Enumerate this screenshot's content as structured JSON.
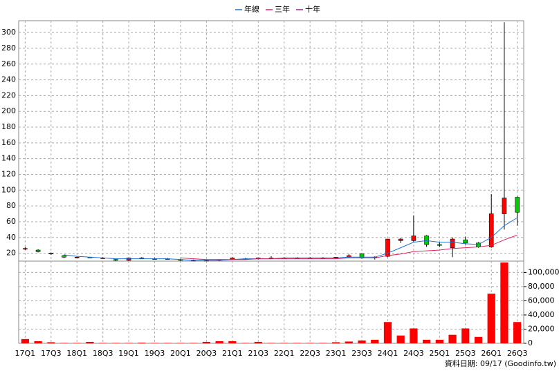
{
  "chart_data": {
    "type": "candlestick",
    "categories": [
      "17Q1",
      null,
      "17Q3",
      null,
      "18Q1",
      null,
      "18Q3",
      null,
      "19Q1",
      null,
      "19Q3",
      null,
      "20Q1",
      null,
      "20Q3",
      null,
      "21Q1",
      null,
      "21Q3",
      null,
      "22Q1",
      null,
      "22Q3",
      null,
      "23Q1",
      null,
      "23Q3",
      null,
      "24Q1",
      null,
      "24Q3",
      null,
      "25Q1",
      null,
      "25Q3",
      null,
      "26Q1",
      null,
      "26Q3"
    ],
    "open": [
      26,
      24,
      20,
      17,
      15,
      15,
      14,
      12,
      11,
      14,
      13,
      13,
      12,
      11,
      11,
      11,
      12,
      13,
      13,
      14,
      14,
      14,
      14,
      14,
      14,
      15,
      19,
      15,
      16,
      36,
      36,
      42,
      31,
      27,
      37,
      33,
      28,
      70,
      91
    ],
    "high": [
      28,
      25,
      21,
      18,
      16,
      15,
      15,
      13,
      14,
      15,
      14,
      14,
      13,
      12,
      12,
      12,
      15,
      14,
      14,
      16,
      15,
      15,
      15,
      15,
      15,
      19,
      20,
      16,
      38,
      39,
      68,
      43,
      34,
      40,
      41,
      34,
      95,
      313,
      92
    ],
    "low": [
      24,
      21,
      18,
      14,
      14,
      14,
      13,
      10,
      10,
      13,
      12,
      12,
      10,
      10,
      10,
      10,
      12,
      12,
      12,
      13,
      13,
      13,
      13,
      13,
      13,
      14,
      13,
      12,
      15,
      33,
      34,
      28,
      28,
      15,
      31,
      27,
      27,
      50,
      55
    ],
    "close": [
      26,
      22,
      19,
      15,
      15,
      14,
      14,
      11,
      14,
      14,
      13,
      13,
      11,
      11,
      11,
      12,
      14,
      13,
      14,
      14,
      14,
      14,
      14,
      14,
      15,
      17,
      14,
      15,
      38,
      38,
      42,
      31,
      30,
      38,
      33,
      28,
      70,
      90,
      72
    ],
    "up_color": "#ff0000",
    "down_color": "#00cc00",
    "series": [
      {
        "name": "年線",
        "color": "#1f6fd6",
        "values": [
          null,
          null,
          null,
          18,
          16,
          15,
          14,
          13,
          13,
          13,
          13,
          13,
          12,
          11,
          11,
          11,
          12,
          13,
          13,
          13,
          14,
          14,
          14,
          14,
          14,
          15,
          15,
          15,
          20,
          27,
          34,
          36,
          34,
          34,
          32,
          31,
          40,
          55,
          65
        ]
      },
      {
        "name": "三年",
        "color": "#e0205a",
        "values": [
          null,
          null,
          null,
          null,
          null,
          null,
          null,
          null,
          null,
          null,
          null,
          null,
          14,
          13,
          12,
          12,
          12,
          12,
          13,
          13,
          13,
          13,
          13,
          13,
          13,
          14,
          14,
          14,
          17,
          19,
          22,
          23,
          24,
          26,
          27,
          28,
          30,
          37,
          43
        ]
      },
      {
        "name": "十年",
        "color": "#a0208f",
        "values": [
          null,
          null,
          null,
          null,
          null,
          null,
          null,
          null,
          null,
          null,
          null,
          null,
          null,
          null,
          null,
          null,
          null,
          null,
          null,
          null,
          null,
          null,
          null,
          null,
          null,
          null,
          null,
          null,
          null,
          null,
          null,
          null,
          null,
          null,
          null,
          null,
          null,
          null,
          null
        ]
      }
    ],
    "ylim": [
      10,
      315
    ],
    "yticks": [
      20,
      40,
      60,
      80,
      100,
      120,
      140,
      160,
      180,
      200,
      220,
      240,
      260,
      280,
      300
    ],
    "volume": [
      6000,
      3000,
      1500,
      500,
      500,
      2000,
      500,
      500,
      500,
      800,
      500,
      500,
      500,
      500,
      2000,
      3000,
      3000,
      500,
      2000,
      500,
      500,
      500,
      500,
      500,
      1500,
      2500,
      4000,
      5000,
      30000,
      11000,
      21000,
      5000,
      5000,
      12000,
      21000,
      9000,
      70000,
      114000,
      30000
    ],
    "volume_color": "#ff0000",
    "volume_ylim": [
      0,
      116000
    ],
    "volume_ticks": [
      0,
      {
        "value": 20000,
        "label": "20,000"
      },
      {
        "value": 40000,
        "label": "40,000"
      },
      {
        "value": 60000,
        "label": "60,000"
      },
      {
        "value": 80000,
        "label": "80,000"
      },
      {
        "value": 100000,
        "label": "100,000"
      }
    ],
    "grid": true,
    "footer": "資料日期: 09/17  (Goodinfo.tw)"
  }
}
